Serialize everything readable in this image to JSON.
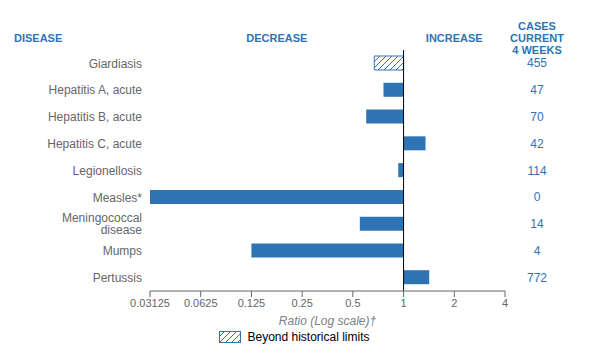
{
  "chart_data": {
    "type": "bar",
    "orientation": "horizontal",
    "log": "x",
    "categories": [
      "Giardiasis",
      "Hepatitis A, acute",
      "Hepatitis B, acute",
      "Hepatitis C, acute",
      "Legionellosis",
      "Measles*",
      "Meningococcal disease",
      "Mumps",
      "Pertussis"
    ],
    "values": [
      0.67,
      0.76,
      0.6,
      1.35,
      0.93,
      0.03125,
      0.55,
      0.125,
      1.42
    ],
    "baseline": 1,
    "beyond_limits": [
      true,
      false,
      false,
      false,
      false,
      false,
      false,
      false,
      false
    ],
    "cases": [
      455,
      47,
      70,
      42,
      114,
      0,
      14,
      4,
      772
    ],
    "color": "#2E74B5",
    "xlabel": "Ratio (Log scale)†",
    "y_header": "DISEASE",
    "decrease_label": "DECREASE",
    "increase_label": "INCREASE",
    "cases_label": "CASES CURRENT\n4 WEEKS",
    "legend": "bottom",
    "legend_label": "Beyond historical limits",
    "xlim": [
      0.03125,
      4
    ],
    "xticks": [
      0.03125,
      0.0625,
      0.125,
      0.25,
      0.5,
      1,
      2,
      4
    ],
    "grid": false
  }
}
